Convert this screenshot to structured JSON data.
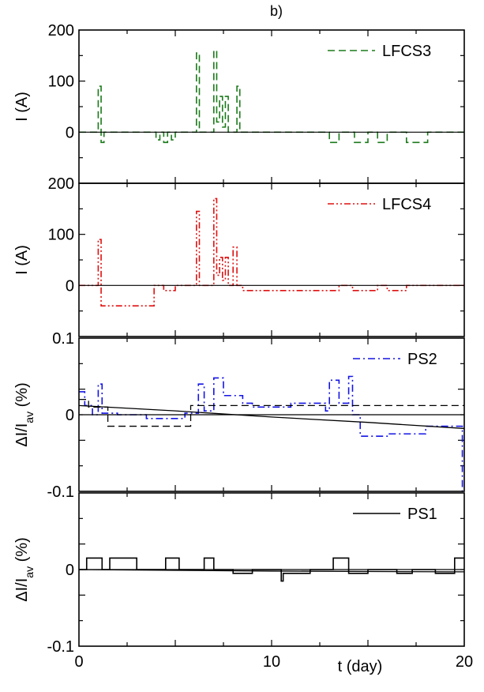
{
  "figure_label": "b)",
  "chart_data": [
    {
      "type": "line",
      "ylabel": "I (A)",
      "ylim": [
        -100,
        200
      ],
      "yticks": [
        0,
        100,
        200
      ],
      "xlim": [
        0,
        20
      ],
      "series": [
        {
          "name": "LFCS3",
          "color": "#1a7a1a",
          "style": "dashed",
          "x": [
            0,
            1.0,
            1.0,
            1.15,
            1.15,
            1.3,
            1.3,
            4.0,
            4.0,
            4.2,
            4.2,
            4.4,
            4.4,
            4.6,
            4.6,
            4.8,
            4.8,
            5.0,
            5.0,
            6.1,
            6.1,
            6.25,
            6.25,
            6.4,
            6.4,
            7.0,
            7.0,
            7.15,
            7.15,
            7.3,
            7.3,
            7.45,
            7.45,
            7.6,
            7.6,
            7.75,
            7.75,
            7.9,
            7.9,
            8.2,
            8.2,
            8.35,
            8.35,
            8.5,
            8.5,
            13.0,
            13.0,
            13.5,
            13.5,
            14.3,
            14.3,
            15.0,
            15.0,
            15.5,
            15.5,
            16.0,
            16.0,
            17.0,
            17.0,
            17.6,
            17.6,
            18.1,
            18.1,
            20.0
          ],
          "y": [
            0,
            0,
            90,
            90,
            -20,
            -20,
            0,
            0,
            -15,
            -15,
            0,
            0,
            -20,
            -20,
            0,
            0,
            -15,
            -15,
            0,
            0,
            155,
            155,
            0,
            0,
            0,
            0,
            160,
            160,
            20,
            20,
            70,
            70,
            10,
            10,
            70,
            70,
            0,
            0,
            0,
            0,
            90,
            90,
            0,
            0,
            0,
            0,
            -20,
            -20,
            0,
            0,
            -20,
            -20,
            0,
            0,
            -20,
            -20,
            0,
            0,
            -20,
            -20,
            -20,
            -20,
            0,
            0
          ]
        }
      ]
    },
    {
      "type": "line",
      "ylabel": "I (A)",
      "ylim": [
        -100,
        200
      ],
      "yticks": [
        0,
        100,
        200
      ],
      "xlim": [
        0,
        20
      ],
      "series": [
        {
          "name": "LFCS4",
          "color": "#e01010",
          "style": "dash-dot-dot",
          "x": [
            0,
            1.0,
            1.0,
            1.15,
            1.15,
            3.9,
            3.9,
            4.4,
            4.4,
            5.0,
            5.0,
            6.1,
            6.1,
            6.25,
            6.25,
            7.0,
            7.0,
            7.15,
            7.15,
            7.3,
            7.3,
            7.45,
            7.45,
            7.6,
            7.6,
            7.75,
            7.75,
            8.0,
            8.0,
            8.2,
            8.2,
            8.35,
            8.35,
            8.5,
            8.5,
            13.5,
            13.5,
            14.2,
            14.2,
            15.5,
            15.5,
            16.0,
            16.0,
            17.0,
            17.0,
            20.0
          ],
          "y": [
            0,
            0,
            90,
            90,
            -40,
            -40,
            0,
            0,
            -10,
            -10,
            0,
            0,
            145,
            145,
            0,
            0,
            170,
            170,
            20,
            20,
            55,
            55,
            10,
            10,
            55,
            55,
            0,
            0,
            75,
            75,
            0,
            0,
            0,
            0,
            -10,
            -10,
            0,
            0,
            -10,
            -10,
            0,
            0,
            -10,
            -10,
            0,
            0
          ]
        }
      ]
    },
    {
      "type": "line",
      "ylabel": "ΔI/I_av (%)",
      "ylim": [
        -0.1,
        0.1
      ],
      "yticks": [
        -0.1,
        0.0,
        0.1
      ],
      "xlim": [
        0,
        20
      ],
      "series": [
        {
          "name": "PS2",
          "color": "#1414e6",
          "style": "dash-dot",
          "x": [
            0,
            0.3,
            0.3,
            0.7,
            0.7,
            1.0,
            1.0,
            1.2,
            1.2,
            2.0,
            2.0,
            3.5,
            3.5,
            5.5,
            5.5,
            6.2,
            6.2,
            6.5,
            6.5,
            7.0,
            7.0,
            7.5,
            7.5,
            8.5,
            8.5,
            9.0,
            9.0,
            11.0,
            11.0,
            12.8,
            12.8,
            13.0,
            13.0,
            13.5,
            13.5,
            14.0,
            14.0,
            14.2,
            14.2,
            14.6,
            14.6,
            16.0,
            16.0,
            18.0,
            18.0,
            19.9,
            19.9,
            20.0
          ],
          "y": [
            0.03,
            0.03,
            0.012,
            0.012,
            0.0,
            0.0,
            0.04,
            0.04,
            0.002,
            0.002,
            0.0,
            0.0,
            -0.005,
            -0.005,
            0.002,
            0.002,
            0.04,
            0.04,
            0.005,
            0.005,
            0.048,
            0.048,
            0.025,
            0.025,
            0.015,
            0.015,
            0.01,
            0.01,
            0.015,
            0.015,
            0.005,
            0.005,
            0.045,
            0.045,
            0.015,
            0.015,
            0.05,
            0.05,
            0.0,
            0.0,
            -0.028,
            -0.028,
            -0.025,
            -0.025,
            -0.015,
            -0.015,
            -0.1,
            -0.1
          ]
        },
        {
          "color": "#000000",
          "style": "dashed",
          "x": [
            0,
            0.5,
            0.5,
            1.5,
            1.5,
            5.8,
            5.8,
            20.0
          ],
          "y": [
            0.02,
            0.02,
            0.01,
            0.01,
            -0.015,
            -0.015,
            0.012,
            0.012
          ]
        },
        {
          "color": "#000000",
          "style": "solid",
          "x": [
            0,
            5,
            10,
            15,
            20
          ],
          "y": [
            0.012,
            0.005,
            -0.003,
            -0.01,
            -0.018
          ]
        }
      ]
    },
    {
      "type": "line",
      "ylabel": "ΔI/I_av (%)",
      "xlabel": "t (day)",
      "ylim": [
        -0.1,
        0.1
      ],
      "yticks": [
        -0.1,
        0.0
      ],
      "xlim": [
        0,
        20
      ],
      "xticks": [
        0,
        10,
        20
      ],
      "series": [
        {
          "name": "PS1",
          "color": "#000000",
          "style": "solid",
          "x": [
            0,
            0.4,
            0.4,
            1.2,
            1.2,
            1.6,
            1.6,
            3.0,
            3.0,
            4.5,
            4.5,
            5.2,
            5.2,
            6.5,
            6.5,
            7.0,
            7.0,
            8.0,
            8.0,
            9.0,
            9.0,
            10.5,
            10.5,
            10.6,
            10.6,
            12.0,
            12.0,
            13.2,
            13.2,
            14.0,
            14.0,
            15.0,
            15.0,
            16.5,
            16.5,
            17.3,
            17.3,
            18.5,
            18.5,
            19.5,
            19.5,
            20.0
          ],
          "y": [
            0.0,
            0.0,
            0.015,
            0.015,
            0.0,
            0.0,
            0.015,
            0.015,
            0.0,
            0.0,
            0.015,
            0.015,
            0.0,
            0.0,
            0.015,
            0.015,
            0.0,
            0.0,
            -0.005,
            -0.005,
            0.0,
            0.0,
            -0.015,
            -0.015,
            -0.005,
            -0.005,
            0.0,
            0.0,
            0.015,
            0.015,
            -0.005,
            -0.005,
            0.0,
            0.0,
            -0.005,
            -0.005,
            0.0,
            0.0,
            -0.005,
            -0.005,
            0.015,
            0.015
          ]
        },
        {
          "color": "#000000",
          "style": "solid",
          "x": [
            0,
            10,
            20
          ],
          "y": [
            0.0,
            -0.002,
            -0.003
          ]
        }
      ]
    }
  ]
}
